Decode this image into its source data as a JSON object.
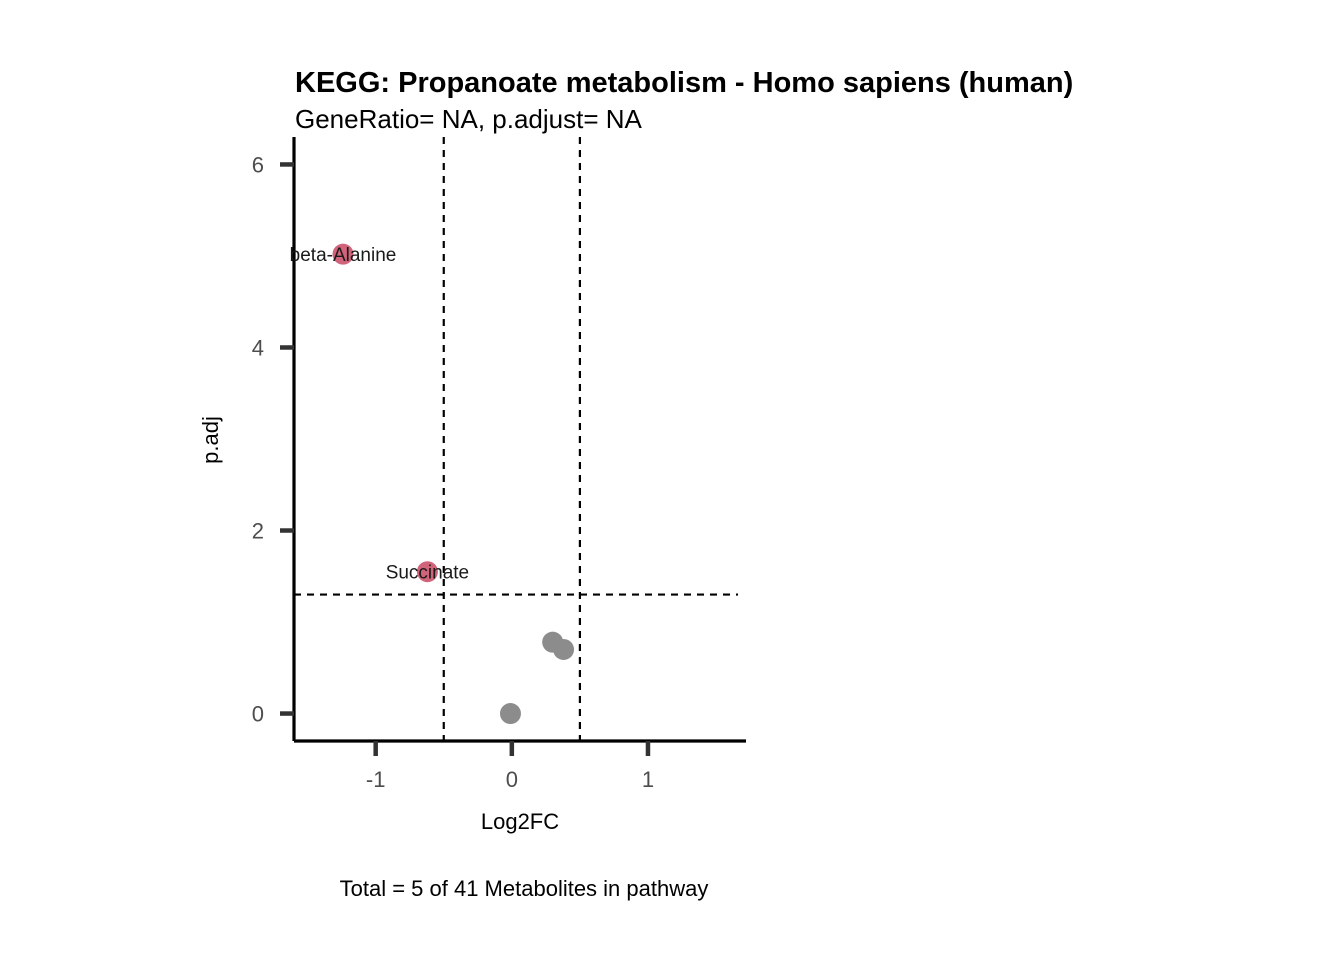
{
  "chart_data": {
    "type": "scatter",
    "title": "KEGG: Propanoate metabolism - Homo sapiens (human)",
    "subtitle": "GeneRatio= NA, p.adjust= NA",
    "xlabel": "Log2FC",
    "ylabel": "p.adj",
    "caption": "Total = 5 of 41 Metabolites in pathway",
    "xlim": [
      -1.6,
      1.72
    ],
    "ylim": [
      -0.3,
      6.3
    ],
    "x_ticks": [
      -1,
      0,
      1
    ],
    "x_tick_labels": [
      "-1",
      "0",
      "1"
    ],
    "y_ticks": [
      0,
      2,
      4,
      6
    ],
    "y_tick_labels": [
      "0",
      "2",
      "4",
      "6"
    ],
    "grid": false,
    "reference_lines": {
      "vertical": [
        -0.5,
        0.5
      ],
      "horizontal": [
        1.3
      ]
    },
    "colors": {
      "significant": "#d1647a",
      "not_significant": "#8c8c8c",
      "axis": "#000000",
      "ticks": "#333333"
    },
    "points": [
      {
        "x": -1.24,
        "y": 5.02,
        "label": "beta-Alanine",
        "significant": true
      },
      {
        "x": -0.62,
        "y": 1.55,
        "label": "Succinate",
        "significant": true
      },
      {
        "x": 0.3,
        "y": 0.78,
        "label": "",
        "significant": false
      },
      {
        "x": 0.38,
        "y": 0.7,
        "label": "",
        "significant": false
      },
      {
        "x": -0.01,
        "y": 0.0,
        "label": "",
        "significant": false
      }
    ]
  }
}
